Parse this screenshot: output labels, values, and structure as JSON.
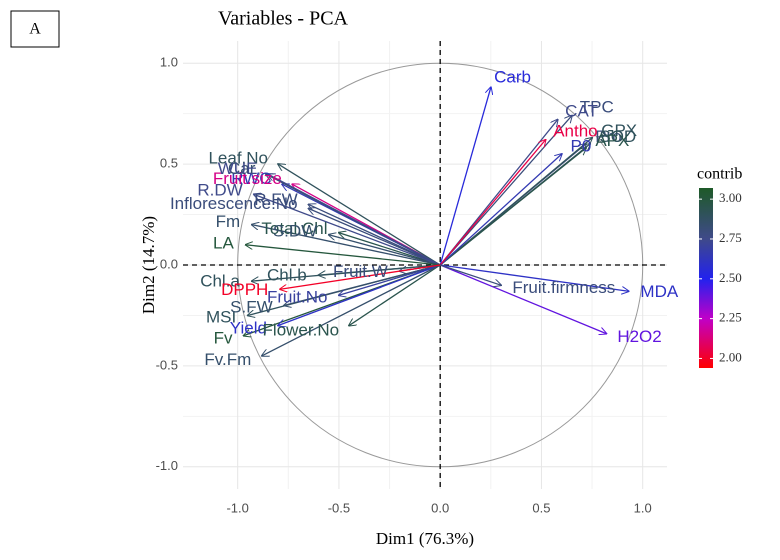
{
  "panel_label": "A",
  "chart_data": {
    "type": "pca-variables",
    "title": "Variables - PCA",
    "x_label": "Dim1 (76.3%)",
    "y_label": "Dim2 (14.7%)",
    "xlim": [
      -1.27,
      1.12
    ],
    "ylim": [
      -1.11,
      1.11
    ],
    "xticks": [
      {
        "value": -1,
        "label": "-1.0"
      },
      -0.5,
      {
        "value": 0,
        "label": "0.0"
      },
      0.5,
      {
        "value": 1,
        "label": "1.0"
      }
    ],
    "yticks": [
      {
        "value": -1,
        "label": "-1.0"
      },
      -0.5,
      {
        "value": 0,
        "label": "0.0"
      },
      0.5,
      {
        "value": 1,
        "label": "1.0"
      }
    ],
    "grid": true,
    "legend_title": "contrib",
    "color_lim": [
      1.94,
      3.07
    ],
    "color_ticks": [
      {
        "value": 2,
        "label": "2.00"
      },
      {
        "value": 2.25,
        "label": "2.25"
      },
      {
        "value": 2.5,
        "label": "2.50"
      },
      {
        "value": 2.75,
        "label": "2.75"
      },
      {
        "value": 3,
        "label": "3.00"
      }
    ],
    "gradient": [
      {
        "value": 1.94,
        "color": "#ff0000"
      },
      {
        "value": 2.25,
        "color": "#c000c8"
      },
      {
        "value": 2.5,
        "color": "#2222ee"
      },
      {
        "value": 2.75,
        "color": "#3f4a8a"
      },
      {
        "value": 3.07,
        "color": "#1e5a28"
      }
    ],
    "variables": [
      "Carb",
      "TPC",
      "CAT",
      "Pro",
      "GPX",
      "SOD",
      "APX",
      "P0",
      "Antho",
      "MDA",
      "H2O2",
      "Fruit.firmness",
      "Fruit.W",
      "Total.Chl",
      "S.DW",
      "Inflorescence.No",
      "R.FW",
      "RWC",
      "Fruit.size",
      "R.DW",
      "Car",
      "Leaf.No",
      "WUE",
      "Fm",
      "LA",
      "Chl.a",
      "Chl.b",
      "MSI",
      "S.FW",
      "Fruit.No",
      "Fv",
      "Yield",
      "Flower.No",
      "Fv.Fm",
      "DPPH"
    ],
    "x": [
      0.25,
      0.65,
      0.58,
      0.72,
      0.75,
      0.74,
      0.72,
      0.6,
      0.52,
      0.93,
      0.82,
      0.3,
      -0.2,
      -0.5,
      -0.55,
      -0.65,
      -0.65,
      -0.78,
      -0.73,
      -0.92,
      -0.86,
      -0.8,
      -0.85,
      -0.93,
      -0.96,
      -0.93,
      -0.6,
      -0.95,
      -0.77,
      -0.5,
      -0.97,
      -0.8,
      -0.45,
      -0.88,
      -0.79
    ],
    "y": [
      0.88,
      0.74,
      0.72,
      0.6,
      0.63,
      0.6,
      0.58,
      0.55,
      0.62,
      -0.13,
      -0.34,
      -0.1,
      -0.03,
      0.16,
      0.15,
      0.28,
      0.3,
      0.4,
      0.4,
      0.35,
      0.45,
      0.5,
      0.45,
      0.2,
      0.1,
      -0.08,
      -0.05,
      -0.25,
      -0.2,
      -0.15,
      -0.35,
      -0.3,
      -0.3,
      -0.45,
      -0.12
    ],
    "contrib": [
      2.55,
      2.8,
      2.75,
      2.8,
      2.9,
      2.9,
      2.95,
      2.65,
      2.05,
      2.6,
      2.4,
      2.8,
      2.8,
      2.95,
      2.85,
      2.8,
      2.8,
      2.65,
      2.15,
      2.75,
      2.85,
      2.9,
      2.75,
      2.85,
      3.0,
      2.9,
      2.9,
      2.9,
      2.85,
      2.7,
      3.0,
      2.6,
      2.95,
      2.85,
      2.0
    ]
  }
}
